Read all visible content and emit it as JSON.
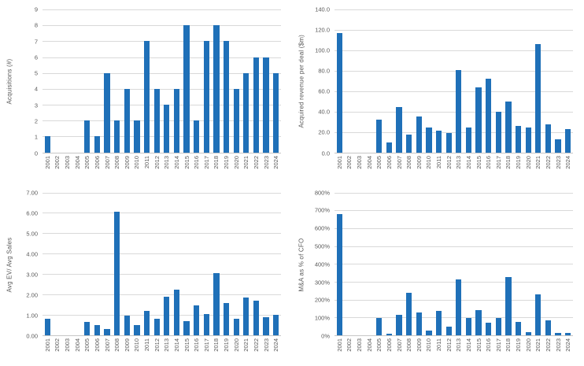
{
  "colors": {
    "bar": "#1f70b8",
    "gridline": "#d9d9d9",
    "axis": "#c6c6c6",
    "text": "#595959",
    "background": "#ffffff"
  },
  "chart_data": [
    {
      "type": "bar",
      "title": "",
      "xlabel": "",
      "ylabel": "Acquisitions (#)",
      "legend": "none",
      "grid": true,
      "ylim": [
        0,
        9
      ],
      "ytick_step": 1,
      "ytick_format": "int",
      "categories": [
        "2001",
        "2002",
        "2003",
        "2004",
        "2005",
        "2006",
        "2007",
        "2008",
        "2009",
        "2010",
        "2011",
        "2012",
        "2013",
        "2014",
        "2015",
        "2016",
        "2017",
        "2018",
        "2019",
        "2020",
        "2021",
        "2022",
        "2023",
        "2024"
      ],
      "values": [
        1,
        0,
        0,
        0,
        2,
        1,
        5,
        2,
        4,
        2,
        7,
        4,
        3,
        4,
        8,
        2,
        7,
        8,
        7,
        4,
        5,
        6,
        6,
        5
      ]
    },
    {
      "type": "bar",
      "title": "",
      "xlabel": "",
      "ylabel": "Acquired revenue per deal ($m)",
      "legend": "none",
      "grid": true,
      "ylim": [
        0,
        140
      ],
      "ytick_step": 20,
      "ytick_format": "one_decimal",
      "categories": [
        "2001",
        "2002",
        "2003",
        "2004",
        "2005",
        "2006",
        "2007",
        "2008",
        "2009",
        "2010",
        "2011",
        "2012",
        "2013",
        "2014",
        "2015",
        "2016",
        "2017",
        "2018",
        "2019",
        "2020",
        "2021",
        "2022",
        "2023",
        "2024"
      ],
      "values": [
        117,
        0,
        0,
        0,
        32,
        10,
        44,
        17.5,
        35,
        24,
        21,
        19,
        81,
        24.5,
        64,
        72.5,
        40,
        49.5,
        25.5,
        24.5,
        106,
        27.5,
        12.5,
        22.5
      ]
    },
    {
      "type": "bar",
      "title": "",
      "xlabel": "",
      "ylabel": "Avg EV/ Avg Sales",
      "legend": "none",
      "grid": true,
      "ylim": [
        0,
        7
      ],
      "ytick_step": 1,
      "ytick_format": "two_decimal",
      "categories": [
        "2001",
        "2002",
        "2003",
        "2004",
        "2005",
        "2006",
        "2007",
        "2008",
        "2009",
        "2010",
        "2011",
        "2012",
        "2013",
        "2014",
        "2015",
        "2016",
        "2017",
        "2018",
        "2019",
        "2020",
        "2021",
        "2022",
        "2023",
        "2024"
      ],
      "values": [
        0.8,
        0,
        0,
        0,
        0.65,
        0.5,
        0.3,
        6.05,
        0.95,
        0.5,
        1.2,
        0.8,
        1.9,
        2.25,
        0.7,
        1.45,
        1.05,
        3.05,
        1.6,
        0.8,
        1.85,
        1.7,
        0.9,
        1.0
      ]
    },
    {
      "type": "bar",
      "title": "",
      "xlabel": "",
      "ylabel": "M&A as % of CFO",
      "legend": "none",
      "grid": true,
      "ylim": [
        0,
        800
      ],
      "ytick_step": 100,
      "ytick_format": "percent",
      "categories": [
        "2001",
        "2002",
        "2003",
        "2004",
        "2005",
        "2006",
        "2007",
        "2008",
        "2009",
        "2010",
        "2011",
        "2012",
        "2013",
        "2014",
        "2015",
        "2016",
        "2017",
        "2018",
        "2019",
        "2020",
        "2021",
        "2022",
        "2023",
        "2024"
      ],
      "values": [
        680,
        0,
        0,
        0,
        97,
        8,
        113,
        240,
        130,
        28,
        138,
        50,
        315,
        95,
        140,
        70,
        97,
        325,
        75,
        17,
        228,
        83,
        12,
        15
      ]
    }
  ]
}
